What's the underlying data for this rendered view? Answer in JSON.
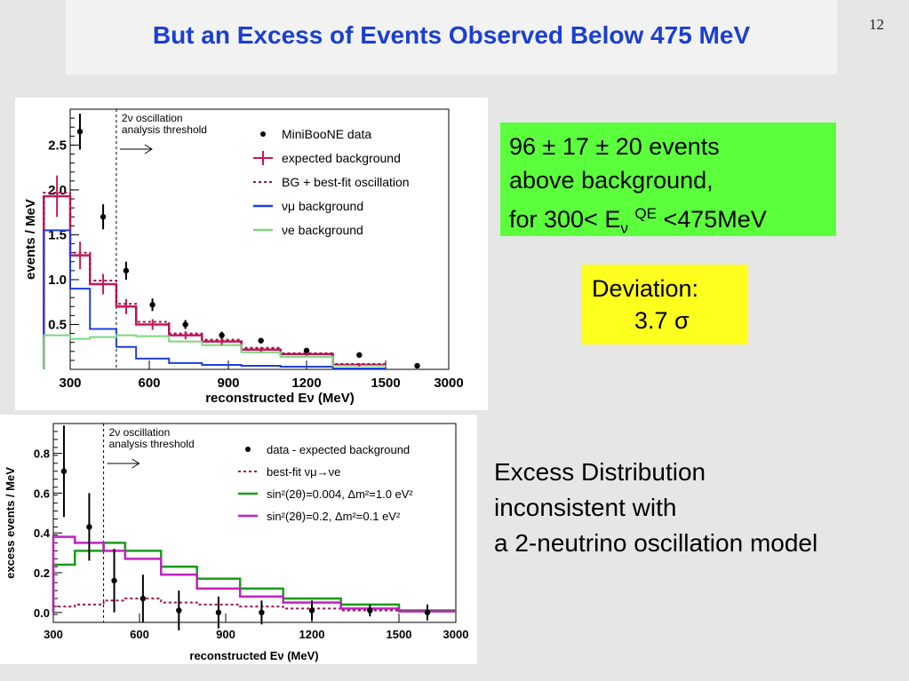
{
  "slide": {
    "title": "But an Excess of Events Observed Below 475 MeV",
    "page_number": "12"
  },
  "green_box": {
    "line1": "96 ± 17 ± 20 events",
    "line2": "above background,",
    "line3_prefix": "for 300< E",
    "line3_sub": "ν",
    "line3_sup": "QE",
    "line3_suffix": "<475MeV"
  },
  "yellow_box": {
    "line1": "Deviation:",
    "line2": "3.7 σ"
  },
  "excess_text": {
    "line1": "Excess Distribution",
    "line2": "inconsistent with",
    "line3": "a 2-neutrino oscillation model"
  },
  "colors": {
    "title": "#1b3fd0",
    "expected_background": "#c2185b",
    "bestfit": "#a0104a",
    "numu_background": "#1f3fe0",
    "nue_background": "#7cd87c",
    "green_series": "#1a9a1a",
    "magenta_series": "#c020c0",
    "green_box": "#5cff3c",
    "yellow_box": "#ffff1f"
  },
  "chart_data": [
    {
      "type": "line",
      "name": "events-spectrum",
      "xlabel": "reconstructed Eν (MeV)",
      "ylabel": "events / MeV",
      "x_tick_labels": [
        "300",
        "600",
        "900",
        "1200",
        "1500",
        "3000"
      ],
      "x_ticks": [
        300,
        600,
        900,
        1200,
        1500,
        3000
      ],
      "y_ticks": [
        0.5,
        1.0,
        1.5,
        2.0,
        2.5
      ],
      "y_tick_labels": [
        "0.5",
        "1.0",
        "1.5",
        "2.0",
        "2.5"
      ],
      "ylim": [
        0,
        2.9
      ],
      "threshold": {
        "x": 475,
        "label_line1": "2ν oscillation",
        "label_line2": "analysis threshold"
      },
      "bin_edges": [
        200,
        300,
        375,
        475,
        550,
        675,
        800,
        950,
        1100,
        1300,
        1500,
        3000
      ],
      "legend": [
        {
          "label": "MiniBooNE data",
          "style": "marker"
        },
        {
          "label": "expected background",
          "style": "cross"
        },
        {
          "label": "BG + best-fit oscillation",
          "style": "dotted"
        },
        {
          "label": "νμ background",
          "style": "line-blue"
        },
        {
          "label": "νe background",
          "style": "line-green"
        }
      ],
      "series": [
        {
          "key": "expected",
          "values": [
            1.93,
            1.27,
            0.95,
            0.7,
            0.5,
            0.38,
            0.31,
            0.22,
            0.17,
            0.05
          ]
        },
        {
          "key": "bestfit",
          "values": [
            1.97,
            1.3,
            0.99,
            0.73,
            0.53,
            0.4,
            0.33,
            0.24,
            0.18,
            0.06
          ]
        },
        {
          "key": "numu",
          "values": [
            1.55,
            0.9,
            0.45,
            0.25,
            0.12,
            0.07,
            0.05,
            0.04,
            0.03,
            0.01
          ]
        },
        {
          "key": "nue",
          "values": [
            0.38,
            0.34,
            0.36,
            0.38,
            0.37,
            0.31,
            0.27,
            0.19,
            0.14,
            0.04
          ]
        }
      ],
      "data_points": [
        {
          "x": 337,
          "y": 2.65,
          "err": 0.2
        },
        {
          "x": 425,
          "y": 1.7,
          "err": 0.14
        },
        {
          "x": 512,
          "y": 1.1,
          "err": 0.1
        },
        {
          "x": 612,
          "y": 0.72,
          "err": 0.07
        },
        {
          "x": 737,
          "y": 0.5,
          "err": 0.05
        },
        {
          "x": 875,
          "y": 0.38,
          "err": 0.04
        },
        {
          "x": 1025,
          "y": 0.32,
          "err": 0.03
        },
        {
          "x": 1200,
          "y": 0.21,
          "err": 0.02
        },
        {
          "x": 1400,
          "y": 0.16,
          "err": 0.015
        },
        {
          "x": 2250,
          "y": 0.04,
          "err": 0.005
        }
      ]
    },
    {
      "type": "line",
      "name": "excess-spectrum",
      "xlabel": "reconstructed Eν (MeV)",
      "ylabel": "excess events / MeV",
      "x_tick_labels": [
        "300",
        "600",
        "900",
        "1200",
        "1500",
        "3000"
      ],
      "x_ticks": [
        300,
        600,
        900,
        1200,
        1500,
        3000
      ],
      "y_ticks": [
        0.0,
        0.2,
        0.4,
        0.6,
        0.8
      ],
      "y_tick_labels": [
        "0.0",
        "0.2",
        "0.4",
        "0.6",
        "0.8"
      ],
      "ylim": [
        -0.05,
        0.95
      ],
      "threshold": {
        "x": 475,
        "label_line1": "2ν oscillation",
        "label_line2": "analysis threshold"
      },
      "bin_edges": [
        300,
        375,
        475,
        550,
        675,
        800,
        950,
        1100,
        1300,
        1500,
        3000
      ],
      "legend": [
        {
          "label": "data - expected background",
          "style": "marker"
        },
        {
          "label": "best-fit νμ→νe",
          "style": "dotted"
        },
        {
          "label": "sin²(2θ)=0.004, Δm²=1.0 eV²",
          "style": "line-green"
        },
        {
          "label": "sin²(2θ)=0.2, Δm²=0.1 eV²",
          "style": "line-magenta"
        }
      ],
      "series": [
        {
          "key": "bestfit",
          "values": [
            0.03,
            0.04,
            0.06,
            0.07,
            0.05,
            0.04,
            0.03,
            0.02,
            0.01,
            0.005
          ]
        },
        {
          "key": "green",
          "values": [
            0.24,
            0.31,
            0.35,
            0.31,
            0.23,
            0.17,
            0.12,
            0.07,
            0.04,
            0.01
          ]
        },
        {
          "key": "magenta",
          "values": [
            0.38,
            0.35,
            0.31,
            0.27,
            0.19,
            0.12,
            0.08,
            0.05,
            0.02,
            0.005
          ]
        }
      ],
      "data_points": [
        {
          "x": 337,
          "y": 0.71,
          "err": 0.23
        },
        {
          "x": 425,
          "y": 0.43,
          "err": 0.17
        },
        {
          "x": 512,
          "y": 0.16,
          "err": 0.16
        },
        {
          "x": 612,
          "y": 0.07,
          "err": 0.12
        },
        {
          "x": 737,
          "y": 0.01,
          "err": 0.1
        },
        {
          "x": 875,
          "y": 0.0,
          "err": 0.08
        },
        {
          "x": 1025,
          "y": 0.0,
          "err": 0.06
        },
        {
          "x": 1200,
          "y": 0.01,
          "err": 0.05
        },
        {
          "x": 1400,
          "y": 0.01,
          "err": 0.03
        },
        {
          "x": 2250,
          "y": 0.0,
          "err": 0.04
        }
      ]
    }
  ]
}
